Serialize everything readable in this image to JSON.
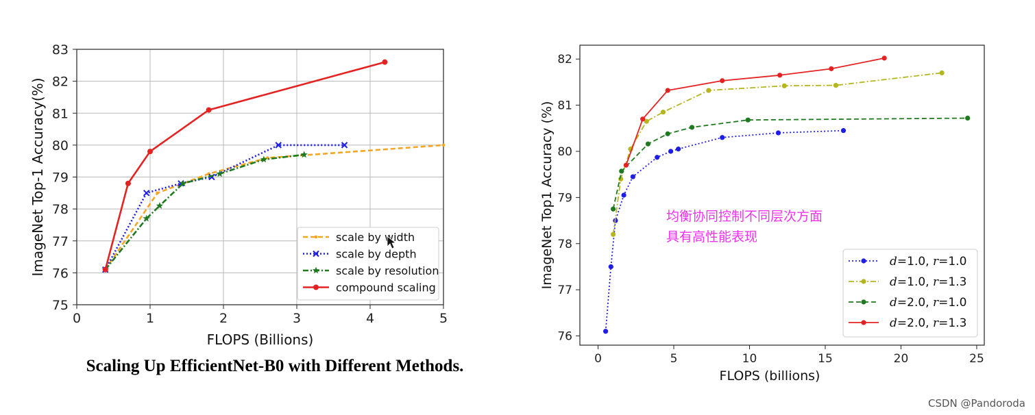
{
  "colors": {
    "orange": "#f5a623",
    "blue": "#1e1ee6",
    "green": "#1f7a1f",
    "red": "#e52222",
    "olive": "#b5b520",
    "annotation": "#ee33ee",
    "grid": "#b8b8b8",
    "axis": "#222222"
  },
  "watermark": "CSDN @Pandoroda",
  "chart_data": [
    {
      "type": "line",
      "title": "",
      "caption": "Scaling Up EfficientNet-B0 with Different Methods.",
      "xlabel": "FLOPS (Billions)",
      "ylabel": "ImageNet Top-1 Accuracy(%)",
      "xlim": [
        0,
        5
      ],
      "ylim": [
        75,
        83
      ],
      "xticks": [
        "0",
        "1",
        "2",
        "3",
        "4",
        "5"
      ],
      "yticks": [
        "75",
        "76",
        "77",
        "78",
        "79",
        "80",
        "81",
        "82",
        "83"
      ],
      "xtick_values": [
        0,
        1,
        2,
        3,
        4,
        5
      ],
      "ytick_values": [
        75,
        76,
        77,
        78,
        79,
        80,
        81,
        82,
        83
      ],
      "grid": true,
      "legend_position": "bottom-right",
      "series": [
        {
          "name": "scale by width",
          "color": "#f5a623",
          "dash": "dashed",
          "marker": "dot",
          "x": [
            0.39,
            1.1,
            1.8,
            2.6,
            5.0
          ],
          "y": [
            76.1,
            78.5,
            79.1,
            79.6,
            80.0
          ]
        },
        {
          "name": "scale by depth",
          "color": "#1e1ee6",
          "dash": "dotted",
          "marker": "x",
          "x": [
            0.39,
            0.95,
            1.42,
            1.84,
            2.75,
            3.65
          ],
          "y": [
            76.1,
            78.5,
            78.8,
            79.0,
            80.0,
            80.0
          ]
        },
        {
          "name": "scale by resolution",
          "color": "#1f7a1f",
          "dash": "dashdot",
          "marker": "star",
          "x": [
            0.39,
            0.95,
            1.13,
            1.45,
            1.95,
            2.55,
            3.1
          ],
          "y": [
            76.1,
            77.7,
            78.1,
            78.8,
            79.1,
            79.55,
            79.7
          ]
        },
        {
          "name": "compound scaling",
          "color": "#e52222",
          "dash": "solid",
          "marker": "dot",
          "x": [
            0.39,
            0.7,
            1.0,
            1.8,
            4.2
          ],
          "y": [
            76.1,
            78.8,
            79.8,
            81.1,
            82.6
          ]
        }
      ]
    },
    {
      "type": "line",
      "title": "",
      "xlabel": "FLOPS (billions)",
      "ylabel": "ImageNet Top1 Accuracy (%)",
      "xlim": [
        -1.2,
        25.5
      ],
      "ylim": [
        75.8,
        82.3
      ],
      "xticks": [
        "0",
        "5",
        "10",
        "15",
        "20",
        "25"
      ],
      "yticks": [
        "76",
        "77",
        "78",
        "79",
        "80",
        "81",
        "82"
      ],
      "xtick_values": [
        0,
        5,
        10,
        15,
        20,
        25
      ],
      "ytick_values": [
        76,
        77,
        78,
        79,
        80,
        81,
        82
      ],
      "grid": false,
      "legend_position": "bottom-right",
      "annotation": [
        "均衡协同控制不同层次方面",
        "具有高性能表现"
      ],
      "series": [
        {
          "name_d": "d",
          "name_mid": "=1.0, ",
          "name_r": "r",
          "name_end": "=1.0",
          "color": "#1e1ee6",
          "dash": "dotted",
          "x": [
            0.5,
            0.85,
            1.15,
            1.7,
            2.3,
            3.9,
            4.8,
            5.3,
            8.2,
            11.9,
            16.2
          ],
          "y": [
            76.1,
            77.5,
            78.5,
            79.05,
            79.45,
            79.87,
            80.0,
            80.05,
            80.3,
            80.4,
            80.45
          ]
        },
        {
          "name_d": "d",
          "name_mid": "=1.0, ",
          "name_r": "r",
          "name_end": "=1.3",
          "color": "#b5b520",
          "dash": "dashdot",
          "x": [
            1.0,
            1.5,
            2.15,
            3.2,
            4.3,
            7.3,
            12.3,
            15.7,
            22.7
          ],
          "y": [
            78.2,
            79.4,
            80.05,
            80.65,
            80.85,
            81.32,
            81.42,
            81.43,
            81.7
          ]
        },
        {
          "name_d": "d",
          "name_mid": "=2.0, ",
          "name_r": "r",
          "name_end": "=1.0",
          "color": "#1f7a1f",
          "dash": "dashed",
          "x": [
            1.0,
            1.55,
            3.3,
            4.6,
            6.2,
            9.9,
            24.4
          ],
          "y": [
            78.75,
            79.57,
            80.16,
            80.38,
            80.52,
            80.68,
            80.72
          ]
        },
        {
          "name_d": "d",
          "name_mid": "=2.0, ",
          "name_r": "r",
          "name_end": "=1.3",
          "color": "#e52222",
          "dash": "solid",
          "x": [
            1.85,
            2.95,
            4.6,
            8.2,
            12.0,
            15.4,
            18.9
          ],
          "y": [
            79.7,
            80.7,
            81.32,
            81.53,
            81.65,
            81.79,
            82.02
          ]
        }
      ]
    }
  ]
}
